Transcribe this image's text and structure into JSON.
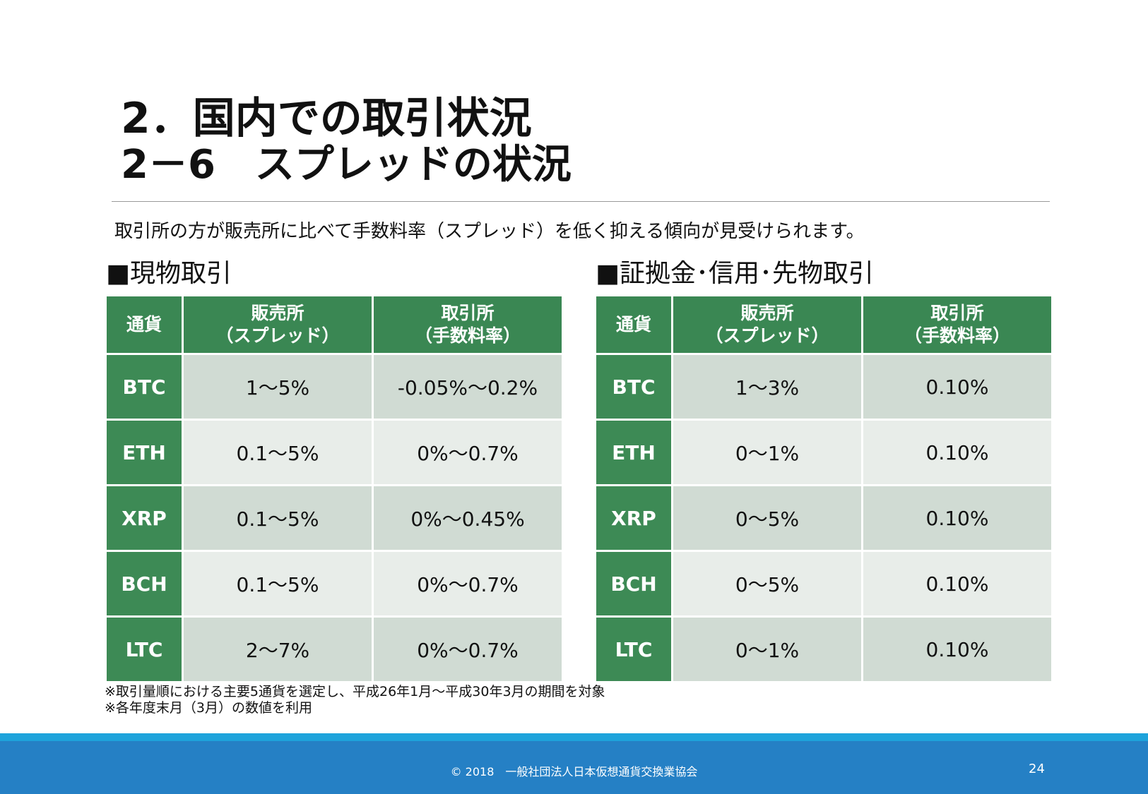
{
  "header": {
    "title": "2．国内での取引状況",
    "subtitle": "2－6　スプレッドの状況"
  },
  "description": "取引所の方が販売所に比べて手数料率（スプレッド）を低く抑える傾向が見受けられます。",
  "tables": [
    {
      "heading": "■現物取引",
      "columns": [
        [
          "通貨"
        ],
        [
          "販売所",
          "（スプレッド）"
        ],
        [
          "取引所",
          "（手数料率）"
        ]
      ],
      "rows": [
        [
          "BTC",
          "1～5%",
          "-0.05%～0.2%"
        ],
        [
          "ETH",
          "0.1～5%",
          "0%～0.7%"
        ],
        [
          "XRP",
          "0.1～5%",
          "0%～0.45%"
        ],
        [
          "BCH",
          "0.1～5%",
          "0%～0.7%"
        ],
        [
          "LTC",
          "2～7%",
          "0%～0.7%"
        ]
      ]
    },
    {
      "heading": "■証拠金･信用･先物取引",
      "columns": [
        [
          "通貨"
        ],
        [
          "販売所",
          "（スプレッド）"
        ],
        [
          "取引所",
          "（手数料率）"
        ]
      ],
      "rows": [
        [
          "BTC",
          "1～3%",
          "0.10%"
        ],
        [
          "ETH",
          "0～1%",
          "0.10%"
        ],
        [
          "XRP",
          "0～5%",
          "0.10%"
        ],
        [
          "BCH",
          "0～5%",
          "0.10%"
        ],
        [
          "LTC",
          "0～1%",
          "0.10%"
        ]
      ]
    }
  ],
  "notes": [
    "※取引量順における主要5通貨を選定し、平成26年1月～平成30年3月の期間を対象",
    "※各年度末月（3月）の数値を利用"
  ],
  "footer": {
    "copyright": "© 2018　一般社団法人日本仮想通貨交換業協会",
    "page": "24"
  }
}
